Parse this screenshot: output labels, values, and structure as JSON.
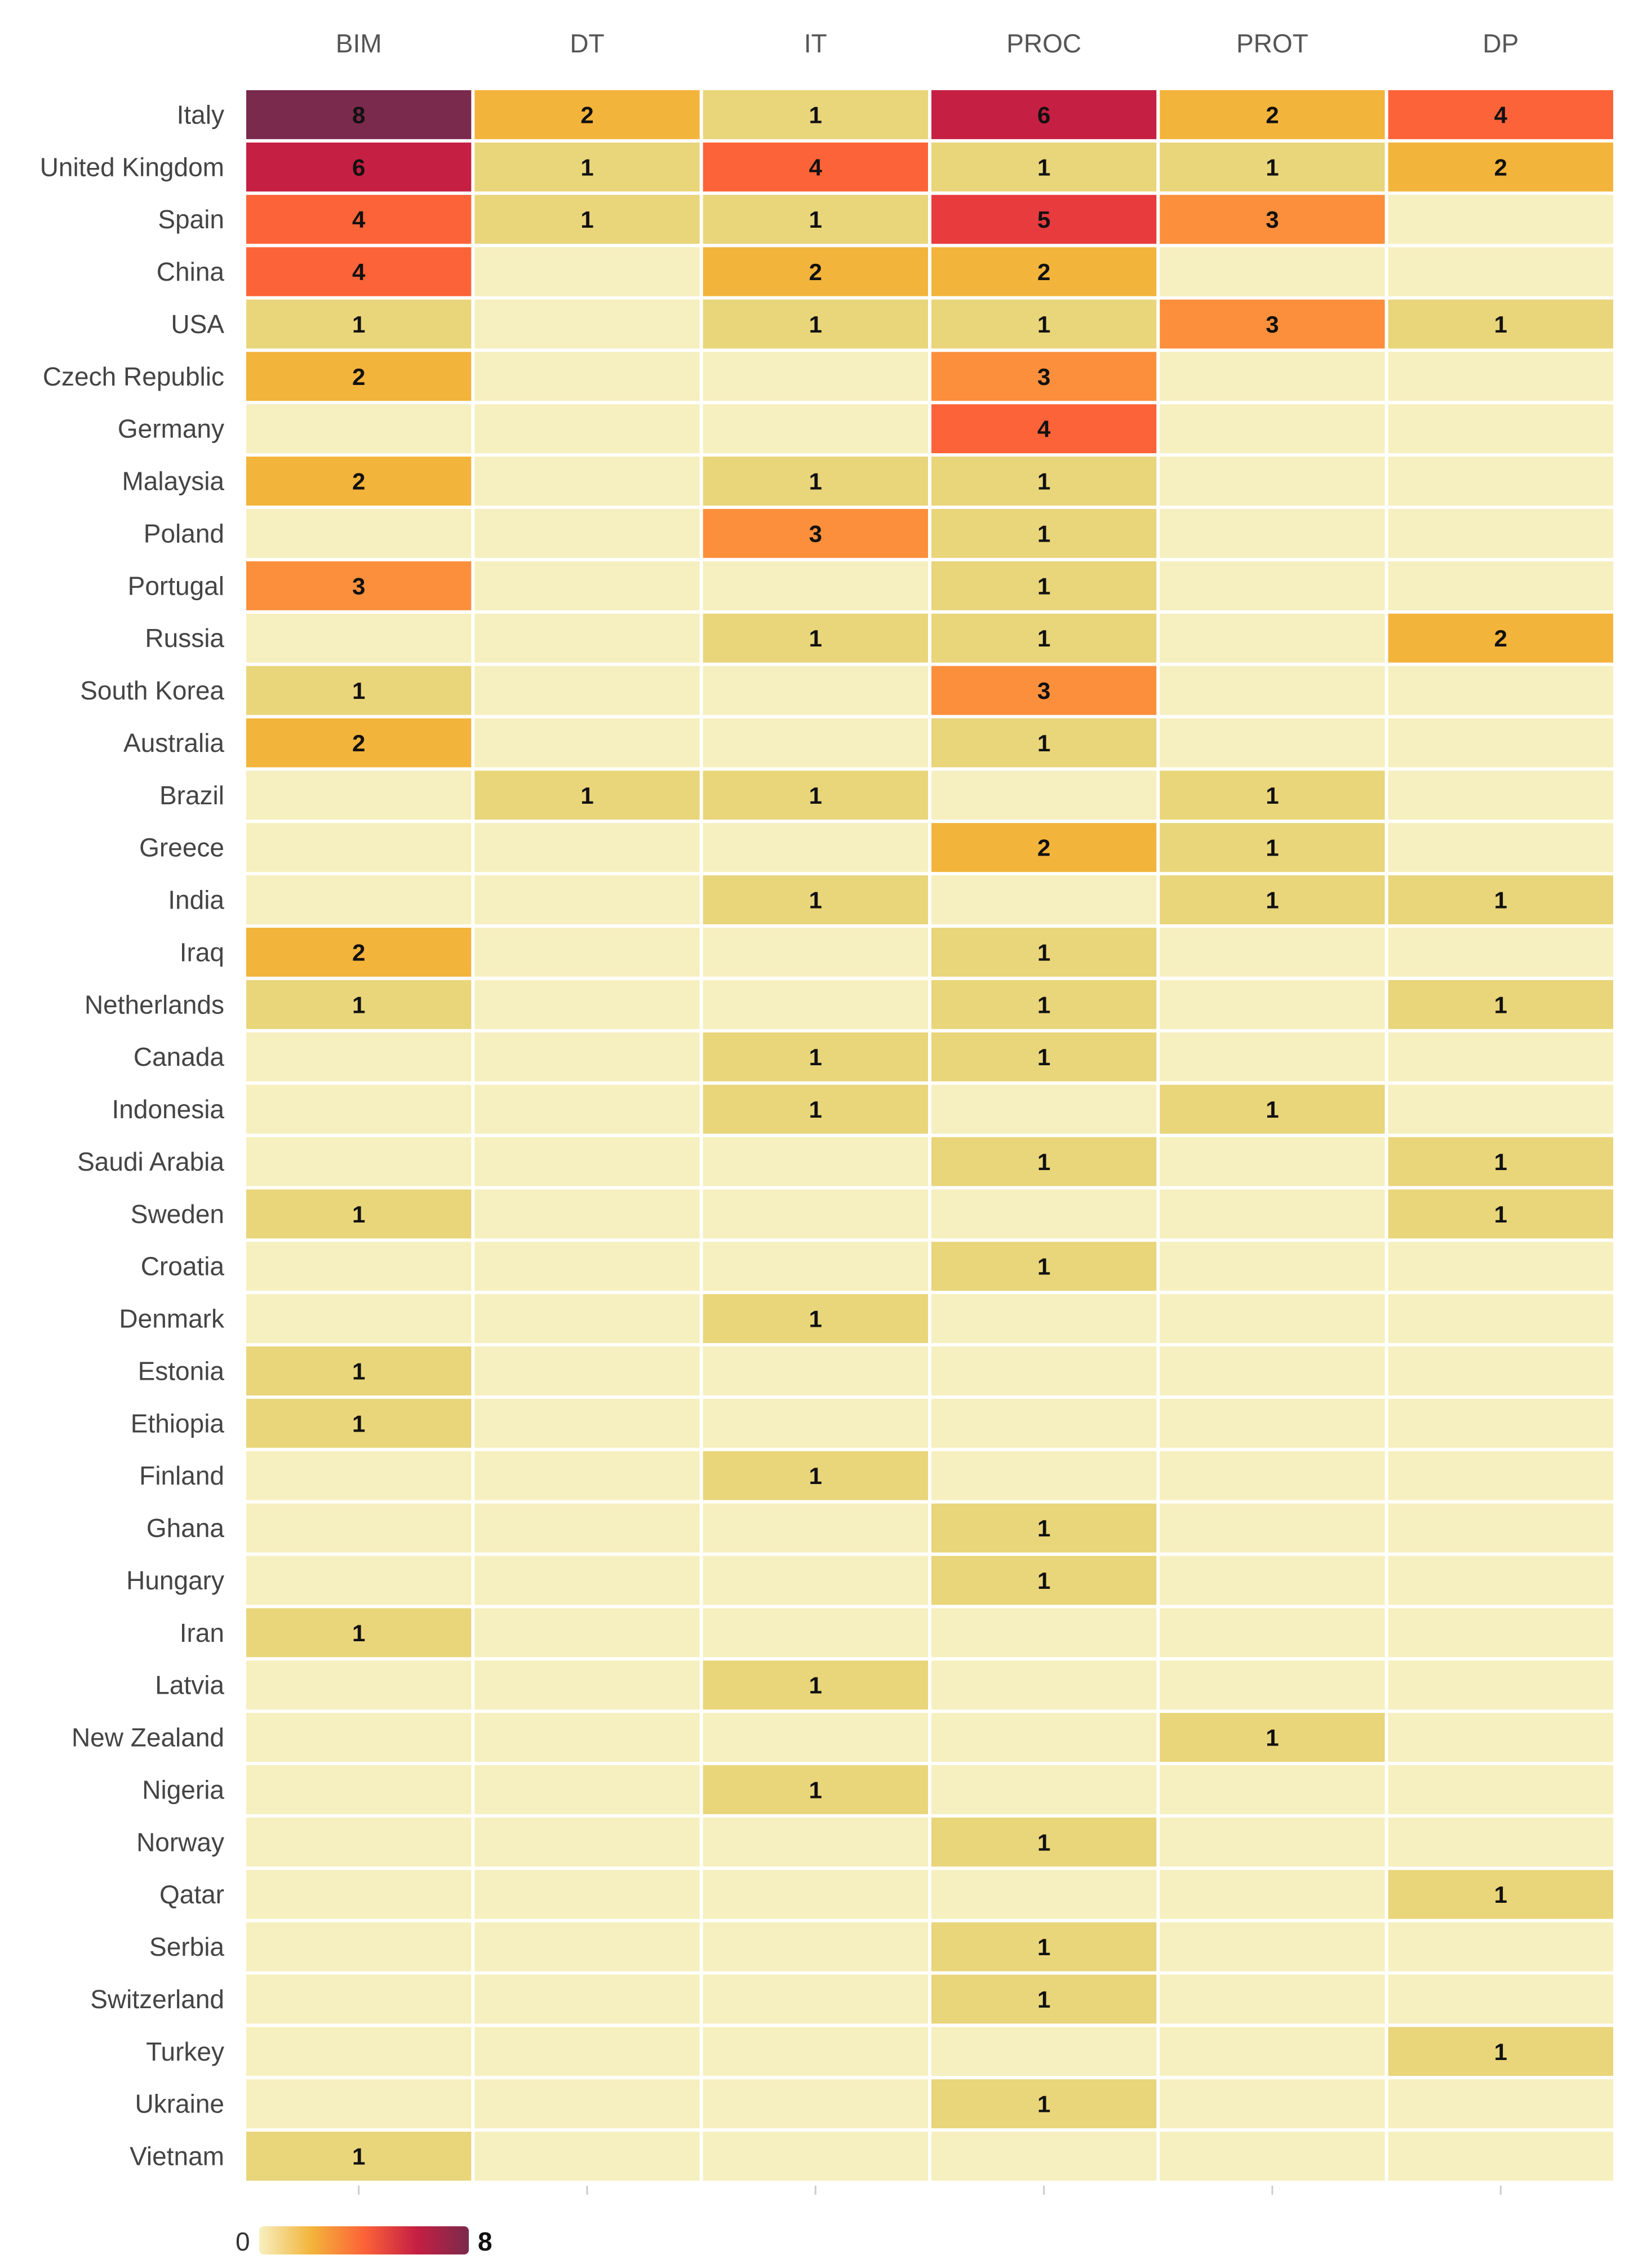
{
  "chart_data": {
    "type": "heatmap",
    "title": "",
    "columns": [
      "BIM",
      "DT",
      "IT",
      "PROC",
      "PROT",
      "DP"
    ],
    "rows": [
      "Italy",
      "United Kingdom",
      "Spain",
      "China",
      "USA",
      "Czech Republic",
      "Germany",
      "Malaysia",
      "Poland",
      "Portugal",
      "Russia",
      "South Korea",
      "Australia",
      "Brazil",
      "Greece",
      "India",
      "Iraq",
      "Netherlands",
      "Canada",
      "Indonesia",
      "Saudi Arabia",
      "Sweden",
      "Croatia",
      "Denmark",
      "Estonia",
      "Ethiopia",
      "Finland",
      "Ghana",
      "Hungary",
      "Iran",
      "Latvia",
      "New Zealand",
      "Nigeria",
      "Norway",
      "Qatar",
      "Serbia",
      "Switzerland",
      "Turkey",
      "Ukraine",
      "Vietnam"
    ],
    "values": [
      [
        8,
        2,
        1,
        6,
        2,
        4
      ],
      [
        6,
        1,
        4,
        1,
        1,
        2
      ],
      [
        4,
        1,
        1,
        5,
        3,
        0
      ],
      [
        4,
        0,
        2,
        2,
        0,
        0
      ],
      [
        1,
        0,
        1,
        1,
        3,
        1
      ],
      [
        2,
        0,
        0,
        3,
        0,
        0
      ],
      [
        0,
        0,
        0,
        4,
        0,
        0
      ],
      [
        2,
        0,
        1,
        1,
        0,
        0
      ],
      [
        0,
        0,
        3,
        1,
        0,
        0
      ],
      [
        3,
        0,
        0,
        1,
        0,
        0
      ],
      [
        0,
        0,
        1,
        1,
        0,
        2
      ],
      [
        1,
        0,
        0,
        3,
        0,
        0
      ],
      [
        2,
        0,
        0,
        1,
        0,
        0
      ],
      [
        0,
        1,
        1,
        0,
        1,
        0
      ],
      [
        0,
        0,
        0,
        2,
        1,
        0
      ],
      [
        0,
        0,
        1,
        0,
        1,
        1
      ],
      [
        2,
        0,
        0,
        1,
        0,
        0
      ],
      [
        1,
        0,
        0,
        1,
        0,
        1
      ],
      [
        0,
        0,
        1,
        1,
        0,
        0
      ],
      [
        0,
        0,
        1,
        0,
        1,
        0
      ],
      [
        0,
        0,
        0,
        1,
        0,
        1
      ],
      [
        1,
        0,
        0,
        0,
        0,
        1
      ],
      [
        0,
        0,
        0,
        1,
        0,
        0
      ],
      [
        0,
        0,
        1,
        0,
        0,
        0
      ],
      [
        1,
        0,
        0,
        0,
        0,
        0
      ],
      [
        1,
        0,
        0,
        0,
        0,
        0
      ],
      [
        0,
        0,
        1,
        0,
        0,
        0
      ],
      [
        0,
        0,
        0,
        1,
        0,
        0
      ],
      [
        0,
        0,
        0,
        1,
        0,
        0
      ],
      [
        1,
        0,
        0,
        0,
        0,
        0
      ],
      [
        0,
        0,
        1,
        0,
        0,
        0
      ],
      [
        0,
        0,
        0,
        0,
        1,
        0
      ],
      [
        0,
        0,
        1,
        0,
        0,
        0
      ],
      [
        0,
        0,
        0,
        1,
        0,
        0
      ],
      [
        0,
        0,
        0,
        0,
        0,
        1
      ],
      [
        0,
        0,
        0,
        1,
        0,
        0
      ],
      [
        0,
        0,
        0,
        1,
        0,
        0
      ],
      [
        0,
        0,
        0,
        0,
        0,
        1
      ],
      [
        0,
        0,
        0,
        1,
        0,
        0
      ],
      [
        1,
        0,
        0,
        0,
        0,
        0
      ]
    ],
    "value_range": [
      0,
      8
    ],
    "legend": {
      "min_label": "0",
      "max_label": "8",
      "placement": "bottom-left"
    },
    "colors": {
      "0": "#f6efbf",
      "1": "#e9d57a",
      "2": "#f3b43b",
      "3": "#fb8f3c",
      "4": "#fc6338",
      "5": "#e73b3e",
      "6": "#c51f43",
      "8": "#7a2a4c"
    },
    "legend_gradient": [
      "#f6efbf",
      "#f3b43b",
      "#fc6338",
      "#c51f43",
      "#7a2a4c"
    ]
  }
}
